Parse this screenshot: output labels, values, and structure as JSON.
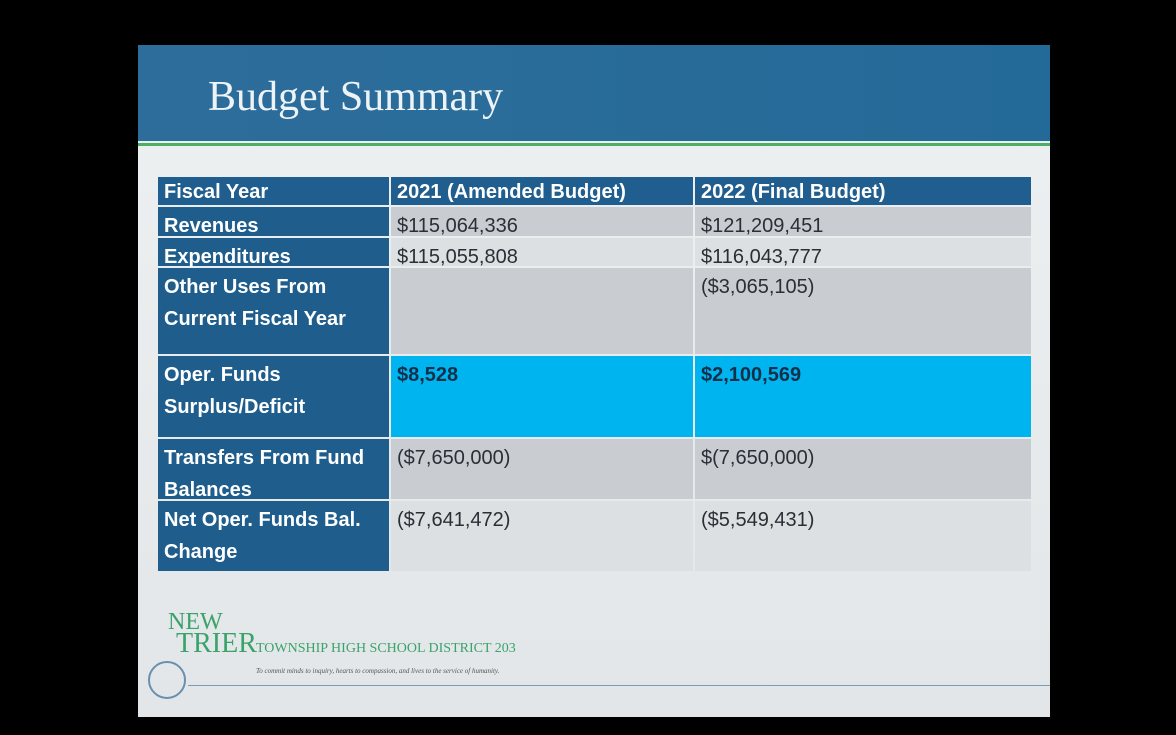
{
  "slide": {
    "title": "Budget Summary",
    "table": {
      "header": [
        "Fiscal Year",
        "2021 (Amended Budget)",
        "2022 (Final Budget)"
      ],
      "rows": [
        {
          "label": "Revenues",
          "y2021": "$115,064,336",
          "y2022": "$121,209,451"
        },
        {
          "label": "Expenditures",
          "y2021": "$115,055,808",
          "y2022": "$116,043,777"
        },
        {
          "label": "Other Uses From Current Fiscal Year",
          "y2022": "($3,065,105)"
        },
        {
          "label": "Oper. Funds Surplus/Deficit",
          "y2021": "$8,528",
          "y2022": "$2,100,569"
        },
        {
          "label": "Transfers From Fund Balances",
          "y2021": "($7,650,000)",
          "y2022": "$(7,650,000)"
        },
        {
          "label": "Net Oper. Funds Bal. Change",
          "y2021": "($7,641,472)",
          "y2022": "($5,549,431)"
        }
      ]
    },
    "logo": {
      "line1": "NEW",
      "line2": "TRIER",
      "district": "TOWNSHIP HIGH SCHOOL DISTRICT 203",
      "motto": "To commit minds to inquiry, hearts to compassion, and lives to the service of humanity."
    }
  }
}
